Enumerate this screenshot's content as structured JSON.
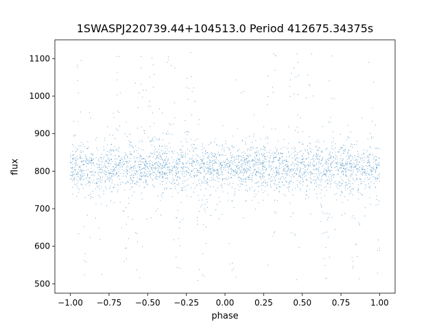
{
  "chart_data": {
    "type": "scatter",
    "title": "1SWASPJ220739.44+104513.0 Period 412675.34375s",
    "xlabel": "phase",
    "ylabel": "flux",
    "xlim": [
      -1.1,
      1.1
    ],
    "ylim": [
      475,
      1150
    ],
    "x_ticks": [
      -1.0,
      -0.75,
      -0.5,
      -0.25,
      0.0,
      0.25,
      0.5,
      0.75,
      1.0
    ],
    "x_tick_labels": [
      "−1.00",
      "−0.75",
      "−0.50",
      "−0.25",
      "0.00",
      "0.25",
      "0.50",
      "0.75",
      "1.00"
    ],
    "y_ticks": [
      500,
      600,
      700,
      800,
      900,
      1000,
      1100
    ],
    "y_tick_labels": [
      "500",
      "600",
      "700",
      "800",
      "900",
      "1000",
      "1100"
    ],
    "grid": false,
    "point_color": "#1f77b4",
    "series": [
      {
        "phase_range": [
          -1.0,
          1.0
        ],
        "baseline_flux": 810,
        "typical_scatter": [
          760,
          860
        ],
        "flux_range": [
          505,
          1120
        ],
        "upward_excursion_phases": [
          -0.95,
          -0.7,
          -0.55,
          -0.48,
          -0.35,
          -0.22,
          0.1,
          0.3,
          0.45,
          0.55,
          0.7,
          0.95
        ],
        "downward_excursion_phases": [
          -0.9,
          -0.82,
          -0.65,
          -0.55,
          -0.32,
          -0.15,
          0.05,
          0.3,
          0.45,
          0.65,
          0.85,
          0.98
        ]
      }
    ]
  }
}
